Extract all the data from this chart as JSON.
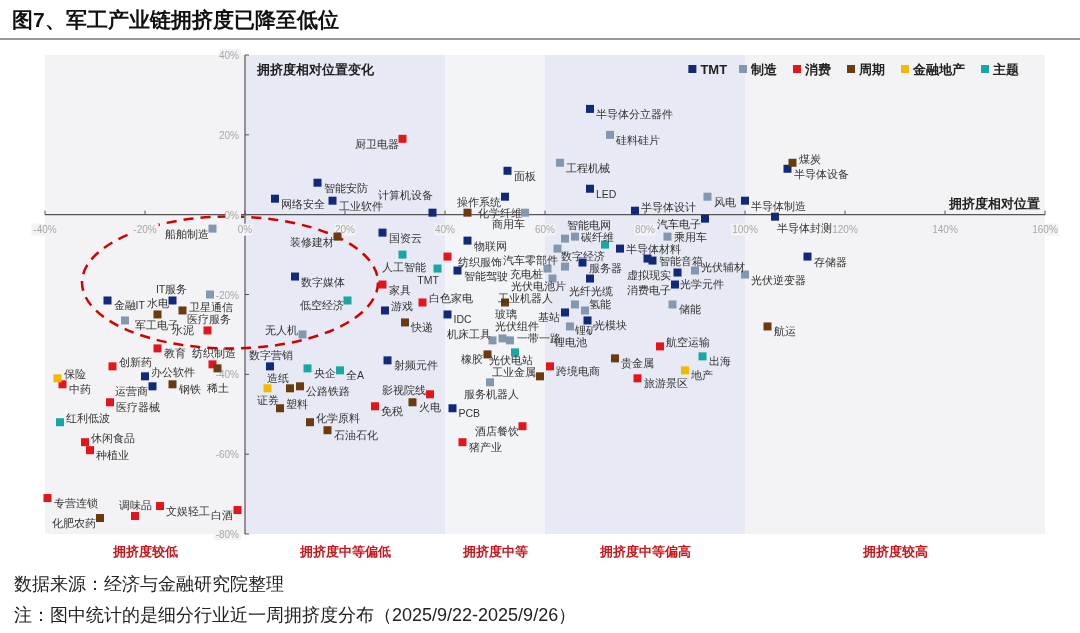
{
  "chart_data": {
    "type": "scatter",
    "title": "图7、军工产业链拥挤度已降至低位",
    "xlabel": "拥挤度相对位置",
    "ylabel": "拥挤度相对位置变化",
    "legend": "top right",
    "marker": "square",
    "xlim": [
      -40,
      160
    ],
    "ylim": [
      -80,
      40
    ],
    "xticks": [
      {
        "value": -40,
        "label": "-40%"
      },
      {
        "value": -20,
        "label": "-20%"
      },
      {
        "value": 0,
        "label": "0%"
      },
      {
        "value": 20,
        "label": "20%"
      },
      {
        "value": 40,
        "label": "40%"
      },
      {
        "value": 60,
        "label": "60%"
      },
      {
        "value": 80,
        "label": "80%"
      },
      {
        "value": 100,
        "label": "100%"
      },
      {
        "value": 120,
        "label": "120%"
      },
      {
        "value": 140,
        "label": "140%"
      },
      {
        "value": 160,
        "label": "160%"
      }
    ],
    "yticks": [
      {
        "value": 40,
        "label": "40%"
      },
      {
        "value": 20,
        "label": "20%"
      },
      {
        "value": 0,
        "label": "0%"
      },
      {
        "value": -20,
        "label": "-20%"
      },
      {
        "value": -40,
        "label": "-40%"
      },
      {
        "value": -60,
        "label": "-60%"
      },
      {
        "value": -80,
        "label": "-80%"
      }
    ],
    "bands": [
      {
        "axis": "x",
        "from": -40,
        "to": 0,
        "label": "拥挤度较低",
        "color": "#f3f3f5"
      },
      {
        "axis": "x",
        "from": 0,
        "to": 40,
        "label": "拥挤度中等偏低",
        "color": "#e7eaf4"
      },
      {
        "axis": "x",
        "from": 40,
        "to": 60,
        "label": "拥挤度中等",
        "color": "#f3f4f7"
      },
      {
        "axis": "x",
        "from": 60,
        "to": 100,
        "label": "拥挤度中等偏高",
        "color": "#e7eaf4"
      },
      {
        "axis": "x",
        "from": 100,
        "to": 160,
        "label": "拥挤度较高",
        "color": "#f3f3f5"
      }
    ],
    "series": [
      {
        "name": "TMT",
        "color": "#12297a",
        "x": [
          6,
          14.5,
          17.5,
          37.5,
          52.5,
          52,
          69,
          69,
          78,
          92,
          100,
          108.5,
          106,
          112.5,
          27.5,
          44.5,
          42.5,
          75,
          67.5,
          81.5,
          80.5,
          86.5,
          86,
          69,
          64,
          68.5,
          40.5,
          28.5,
          41.5,
          5,
          10,
          -27.5,
          -14.5,
          -20,
          -18.5,
          28
        ],
        "values": [
          4,
          8,
          3.5,
          0.5,
          11,
          4.5,
          26.5,
          6.5,
          1,
          -1,
          3.5,
          11.5,
          -0.5,
          -10.5,
          -4.5,
          -6.5,
          -14,
          -8.5,
          -12,
          -11.5,
          -11,
          -14.5,
          -17.5,
          -16,
          -24.5,
          -26.5,
          -25,
          -36.5,
          -48.5,
          -38,
          -15.5,
          -21.5,
          -21.5,
          -40.5,
          -43,
          -24
        ]
      },
      {
        "name": "制造",
        "color": "#8497b0",
        "x": [
          -6.5,
          -7,
          -24,
          11.5,
          56,
          63,
          73,
          92.5,
          64,
          66,
          62.5,
          84.5,
          60.5,
          64,
          61.5,
          90,
          100,
          85.5,
          66,
          68,
          65,
          49.5,
          51.5,
          53,
          49
        ],
        "values": [
          -3.5,
          -20,
          -26.5,
          -30,
          0.5,
          13,
          20,
          4.5,
          -6,
          -5.5,
          -8.5,
          -5.5,
          -13.5,
          -13,
          -16,
          -14,
          -15,
          -22.5,
          -22.5,
          -24,
          -28,
          -31.5,
          -31,
          -31.5,
          -42
        ]
      },
      {
        "name": "消费",
        "color": "#e3151a",
        "x": [
          31.5,
          40.5,
          27.5,
          35.5,
          26,
          37,
          43.5,
          55.5,
          61,
          78.5,
          83,
          -7.5,
          -17.5,
          -6.5,
          -26.5,
          -36.5,
          -27,
          -32,
          -31,
          -39.5,
          -17,
          -22,
          -1.5
        ],
        "values": [
          19,
          -10.5,
          -17.5,
          -22,
          -48,
          -45,
          -57,
          -53,
          -38,
          -41,
          -33,
          -29,
          -33.5,
          -37.5,
          -38,
          -42.5,
          -47,
          -57,
          -59,
          -71,
          -73,
          -75.5,
          -74
        ]
      },
      {
        "name": "周期",
        "color": "#6b3a0f",
        "x": [
          44.5,
          109.5,
          18.5,
          52,
          32,
          33.5,
          48.5,
          59,
          74,
          104.5,
          -17.5,
          -12.5,
          -14.5,
          -29,
          -5.5,
          11,
          9,
          7,
          13,
          16.5
        ],
        "values": [
          0.5,
          13,
          -5.5,
          -22,
          -27,
          -47,
          -35,
          -40.5,
          -36,
          -28,
          -25,
          -24,
          -42.5,
          -76,
          -38.5,
          -43,
          -43.5,
          -48.5,
          -52,
          -54
        ]
      },
      {
        "name": "金融地产",
        "color": "#f5b800",
        "x": [
          4.5,
          -37.5,
          88
        ],
        "values": [
          -43.5,
          -41,
          -39
        ]
      },
      {
        "name": "主题",
        "color": "#1aa6a2",
        "x": [
          31.5,
          38.5,
          20.5,
          19,
          12.5,
          -37,
          54,
          91.5,
          72
        ],
        "values": [
          -10,
          -13.5,
          -21.5,
          -39,
          -38.5,
          -52,
          -34.5,
          -35.5,
          -7.5
        ]
      }
    ],
    "annotations": [
      {
        "text": "网络安全",
        "x": 6,
        "y": 4
      },
      {
        "text": "智能安防",
        "x": 14.5,
        "y": 8
      },
      {
        "text": "工业软件",
        "x": 17.5,
        "y": 3.5
      },
      {
        "text": "计算机设备",
        "x": 37.5,
        "y": 0.5
      },
      {
        "text": "面板",
        "x": 52.5,
        "y": 11
      },
      {
        "text": "操作系统",
        "x": 52,
        "y": 4.5
      },
      {
        "text": "半导体分立器件",
        "x": 69,
        "y": 26.5
      },
      {
        "text": "LED",
        "x": 69,
        "y": 6.5
      },
      {
        "text": "半导体设计",
        "x": 78,
        "y": 1
      },
      {
        "text": "汽车电子",
        "x": 92,
        "y": -1
      },
      {
        "text": "半导体制造",
        "x": 100,
        "y": 3.5
      },
      {
        "text": "半导体设备",
        "x": 108.5,
        "y": 11.5
      },
      {
        "text": "半导体封测",
        "x": 106,
        "y": -0.5
      },
      {
        "text": "存储器",
        "x": 112.5,
        "y": -10.5
      },
      {
        "text": "国资云",
        "x": 27.5,
        "y": -4.5
      },
      {
        "text": "物联网",
        "x": 44.5,
        "y": -6.5
      },
      {
        "text": "智能驾驶",
        "x": 42.5,
        "y": -14
      },
      {
        "text": "半导体材料",
        "x": 75,
        "y": -8.5
      },
      {
        "text": "服务器",
        "x": 67.5,
        "y": -12
      },
      {
        "text": "智能音箱",
        "x": 81.5,
        "y": -11.5
      },
      {
        "text": "虚拟现实",
        "x": 80.5,
        "y": -11
      },
      {
        "text": "光学元件",
        "x": 86.5,
        "y": -14.5
      },
      {
        "text": "消费电子",
        "x": 86,
        "y": -17.5
      },
      {
        "text": "光纤光缆",
        "x": 69,
        "y": -16
      },
      {
        "text": "基站",
        "x": 64,
        "y": -24.5
      },
      {
        "text": "光模块",
        "x": 68.5,
        "y": -26.5
      },
      {
        "text": "IDC",
        "x": 40.5,
        "y": -25
      },
      {
        "text": "射频元件",
        "x": 28.5,
        "y": -36.5
      },
      {
        "text": "PCB",
        "x": 41.5,
        "y": -48.5
      },
      {
        "text": "数字营销",
        "x": 5,
        "y": -38
      },
      {
        "text": "数字媒体",
        "x": 10,
        "y": -15.5
      },
      {
        "text": "金融IT",
        "x": -27.5,
        "y": -21.5
      },
      {
        "text": "IT服务",
        "x": -14.5,
        "y": -21.5
      },
      {
        "text": "办公软件",
        "x": -20,
        "y": -40.5
      },
      {
        "text": "运营商",
        "x": -18.5,
        "y": -43
      },
      {
        "text": "游戏",
        "x": 28,
        "y": -24
      },
      {
        "text": "船舶制造",
        "x": -6.5,
        "y": -3.5
      },
      {
        "text": "卫星通信",
        "x": -7,
        "y": -20
      },
      {
        "text": "军工电子",
        "x": -24,
        "y": -26.5
      },
      {
        "text": "无人机",
        "x": 11.5,
        "y": -30
      },
      {
        "text": "商用车",
        "x": 56,
        "y": 0.5
      },
      {
        "text": "工程机械",
        "x": 63,
        "y": 13
      },
      {
        "text": "硅料硅片",
        "x": 73,
        "y": 20
      },
      {
        "text": "风电",
        "x": 92.5,
        "y": 4.5
      },
      {
        "text": "智能电网",
        "x": 64,
        "y": -6
      },
      {
        "text": "碳纤维",
        "x": 66,
        "y": -5.5
      },
      {
        "text": "汽车零部件",
        "x": 62.5,
        "y": -8.5
      },
      {
        "text": "乘用车",
        "x": 84.5,
        "y": -5.5
      },
      {
        "text": "充电桩",
        "x": 60.5,
        "y": -13.5
      },
      {
        "text": "光伏电池片",
        "x": 64,
        "y": -13
      },
      {
        "text": "工业机器人",
        "x": 61.5,
        "y": -16
      },
      {
        "text": "光伏辅材",
        "x": 90,
        "y": -14
      },
      {
        "text": "光伏逆变器",
        "x": 100,
        "y": -15
      },
      {
        "text": "储能",
        "x": 85.5,
        "y": -22.5
      },
      {
        "text": "氢能",
        "x": 66,
        "y": -22.5
      },
      {
        "text": "锂矿",
        "x": 68,
        "y": -24
      },
      {
        "text": "锂电池",
        "x": 65,
        "y": -28
      },
      {
        "text": "光伏组件",
        "x": 49.5,
        "y": -31.5
      },
      {
        "text": "机床工具",
        "x": 51.5,
        "y": -31
      },
      {
        "text": "光伏电站",
        "x": 53,
        "y": -31.5
      },
      {
        "text": "服务机器人",
        "x": 49,
        "y": -42
      },
      {
        "text": "厨卫电器",
        "x": 31.5,
        "y": 19
      },
      {
        "text": "纺织服饰",
        "x": 40.5,
        "y": -10.5
      },
      {
        "text": "家具",
        "x": 27.5,
        "y": -17.5
      },
      {
        "text": "白色家电",
        "x": 35.5,
        "y": -22
      },
      {
        "text": "免税",
        "x": 26,
        "y": -48
      },
      {
        "text": "影视院线",
        "x": 37,
        "y": -45
      },
      {
        "text": "猪产业",
        "x": 43.5,
        "y": -57
      },
      {
        "text": "酒店餐饮",
        "x": 55.5,
        "y": -53
      },
      {
        "text": "跨境电商",
        "x": 61,
        "y": -38
      },
      {
        "text": "旅游景区",
        "x": 78.5,
        "y": -41
      },
      {
        "text": "航空运输",
        "x": 83,
        "y": -33
      },
      {
        "text": "医疗服务",
        "x": -7.5,
        "y": -29
      },
      {
        "text": "教育",
        "x": -17.5,
        "y": -33.5
      },
      {
        "text": "纺织制造",
        "x": -6.5,
        "y": -37.5
      },
      {
        "text": "创新药",
        "x": -26.5,
        "y": -38
      },
      {
        "text": "中药",
        "x": -36.5,
        "y": -42.5
      },
      {
        "text": "医疗器械",
        "x": -27,
        "y": -47
      },
      {
        "text": "休闲食品",
        "x": -32,
        "y": -57
      },
      {
        "text": "种植业",
        "x": -31,
        "y": -59
      },
      {
        "text": "专营连锁",
        "x": -39.5,
        "y": -71
      },
      {
        "text": "文娱轻工",
        "x": -17,
        "y": -73
      },
      {
        "text": "调味品",
        "x": -22,
        "y": -75.5
      },
      {
        "text": "白酒",
        "x": -1.5,
        "y": -74
      },
      {
        "text": "化学纤维",
        "x": 44.5,
        "y": 0.5
      },
      {
        "text": "煤炭",
        "x": 109.5,
        "y": 13
      },
      {
        "text": "装修建材",
        "x": 18.5,
        "y": -5.5
      },
      {
        "text": "玻璃",
        "x": 52,
        "y": -22
      },
      {
        "text": "快递",
        "x": 32,
        "y": -27
      },
      {
        "text": "火电",
        "x": 33.5,
        "y": -47
      },
      {
        "text": "橡胶",
        "x": 48.5,
        "y": -35
      },
      {
        "text": "工业金属",
        "x": 59,
        "y": -40.5
      },
      {
        "text": "贵金属",
        "x": 74,
        "y": -36
      },
      {
        "text": "航运",
        "x": 104.5,
        "y": -28
      },
      {
        "text": "水电",
        "x": -17.5,
        "y": -25
      },
      {
        "text": "水泥",
        "x": -12.5,
        "y": -24
      },
      {
        "text": "钢铁",
        "x": -14.5,
        "y": -42.5
      },
      {
        "text": "化肥农药",
        "x": -29,
        "y": -76
      },
      {
        "text": "稀土",
        "x": -5.5,
        "y": -38.5
      },
      {
        "text": "公路铁路",
        "x": 11,
        "y": -43
      },
      {
        "text": "造纸",
        "x": 9,
        "y": -43.5
      },
      {
        "text": "塑料",
        "x": 7,
        "y": -48.5
      },
      {
        "text": "化学原料",
        "x": 13,
        "y": -52
      },
      {
        "text": "石油石化",
        "x": 16.5,
        "y": -54
      },
      {
        "text": "证券",
        "x": 4.5,
        "y": -43.5
      },
      {
        "text": "保险",
        "x": -37.5,
        "y": -41
      },
      {
        "text": "地产",
        "x": 88,
        "y": -39
      },
      {
        "text": "人工智能",
        "x": 31.5,
        "y": -10
      },
      {
        "text": "TMT",
        "x": 38.5,
        "y": -13.5
      },
      {
        "text": "低空经济",
        "x": 20.5,
        "y": -21.5
      },
      {
        "text": "全A",
        "x": 19,
        "y": -39
      },
      {
        "text": "央企",
        "x": 12.5,
        "y": -38.5
      },
      {
        "text": "红利低波",
        "x": -37,
        "y": -52
      },
      {
        "text": "一带一路",
        "x": 54,
        "y": -34.5
      },
      {
        "text": "出海",
        "x": 91.5,
        "y": -35.5
      },
      {
        "text": "数字经济",
        "x": 72,
        "y": -7.5
      },
      "数据来源：经济与金融研究院整理",
      "注：图中统计的是细分行业近一周拥挤度分布（2025/9/22-2025/9/26）"
    ]
  }
}
